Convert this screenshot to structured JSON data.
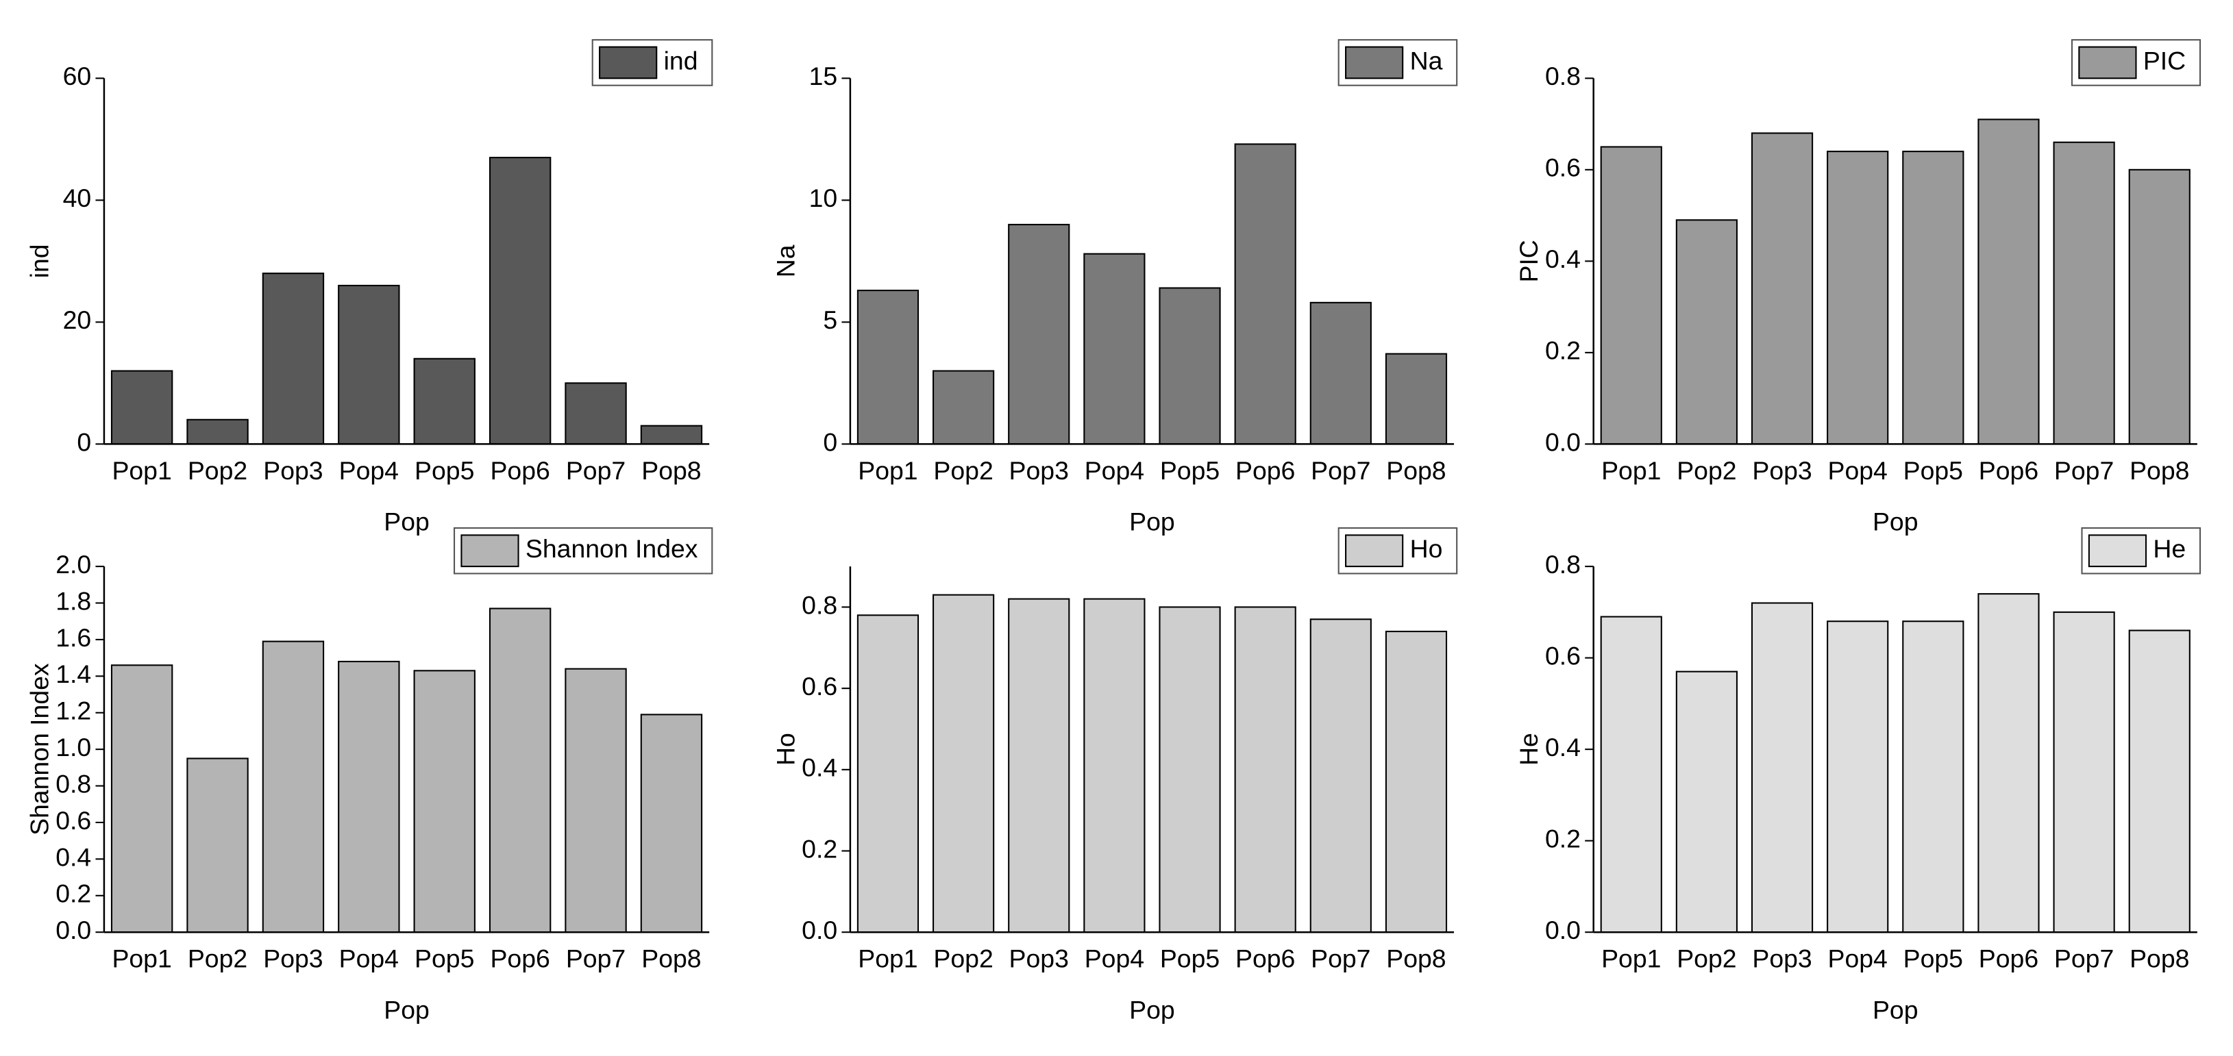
{
  "chart_data": [
    {
      "type": "bar",
      "categories": [
        "Pop1",
        "Pop2",
        "Pop3",
        "Pop4",
        "Pop5",
        "Pop6",
        "Pop7",
        "Pop8"
      ],
      "xlabel": "Pop",
      "ylabel": "ind",
      "series": [
        {
          "name": "ind",
          "color": "#595959",
          "values": [
            12,
            4,
            28,
            26,
            14,
            47,
            10,
            3
          ]
        }
      ],
      "ylim": [
        0,
        60
      ],
      "yticks": [
        0,
        20,
        40,
        60
      ]
    },
    {
      "type": "bar",
      "categories": [
        "Pop1",
        "Pop2",
        "Pop3",
        "Pop4",
        "Pop5",
        "Pop6",
        "Pop7",
        "Pop8"
      ],
      "xlabel": "Pop",
      "ylabel": "Na",
      "series": [
        {
          "name": "Na",
          "color": "#7a7a7a",
          "values": [
            6.3,
            3,
            9,
            7.8,
            6.4,
            12.3,
            5.8,
            3.7
          ]
        }
      ],
      "ylim": [
        0,
        15
      ],
      "yticks": [
        0,
        5,
        10,
        15
      ]
    },
    {
      "type": "bar",
      "categories": [
        "Pop1",
        "Pop2",
        "Pop3",
        "Pop4",
        "Pop5",
        "Pop6",
        "Pop7",
        "Pop8"
      ],
      "xlabel": "Pop",
      "ylabel": "PIC",
      "series": [
        {
          "name": "PIC",
          "color": "#9a9a9a",
          "values": [
            0.65,
            0.49,
            0.68,
            0.64,
            0.64,
            0.71,
            0.66,
            0.6
          ]
        }
      ],
      "ylim": [
        0,
        0.8
      ],
      "yticks": [
        {
          "value": 0,
          "label": "0.0"
        },
        0.2,
        0.4,
        0.6,
        0.8
      ]
    },
    {
      "type": "bar",
      "categories": [
        "Pop1",
        "Pop2",
        "Pop3",
        "Pop4",
        "Pop5",
        "Pop6",
        "Pop7",
        "Pop8"
      ],
      "xlabel": "Pop",
      "ylabel": "Shannon Index",
      "series": [
        {
          "name": "Shannon Index",
          "color": "#b4b4b4",
          "values": [
            1.46,
            0.95,
            1.59,
            1.48,
            1.43,
            1.77,
            1.44,
            1.19
          ]
        }
      ],
      "ylim": [
        0,
        2
      ],
      "yticks": [
        {
          "value": 0,
          "label": "0.0"
        },
        0.2,
        0.4,
        0.6,
        0.8,
        {
          "value": 1,
          "label": "1.0"
        },
        1.2,
        1.4,
        1.6,
        1.8,
        {
          "value": 2,
          "label": "2.0"
        }
      ]
    },
    {
      "type": "bar",
      "categories": [
        "Pop1",
        "Pop2",
        "Pop3",
        "Pop4",
        "Pop5",
        "Pop6",
        "Pop7",
        "Pop8"
      ],
      "xlabel": "Pop",
      "ylabel": "Ho",
      "series": [
        {
          "name": "Ho",
          "color": "#cecece",
          "values": [
            0.78,
            0.83,
            0.82,
            0.82,
            0.8,
            0.8,
            0.77,
            0.74
          ]
        }
      ],
      "ylim": [
        0,
        0.9
      ],
      "yticks": [
        {
          "value": 0,
          "label": "0.0"
        },
        0.2,
        0.4,
        0.6,
        0.8
      ]
    },
    {
      "type": "bar",
      "categories": [
        "Pop1",
        "Pop2",
        "Pop3",
        "Pop4",
        "Pop5",
        "Pop6",
        "Pop7",
        "Pop8"
      ],
      "xlabel": "Pop",
      "ylabel": "He",
      "series": [
        {
          "name": "He",
          "color": "#dedede",
          "values": [
            0.69,
            0.57,
            0.72,
            0.68,
            0.68,
            0.74,
            0.7,
            0.66
          ]
        }
      ],
      "ylim": [
        0,
        0.8
      ],
      "yticks": [
        {
          "value": 0,
          "label": "0.0"
        },
        0.2,
        0.4,
        0.6,
        0.8
      ]
    }
  ]
}
